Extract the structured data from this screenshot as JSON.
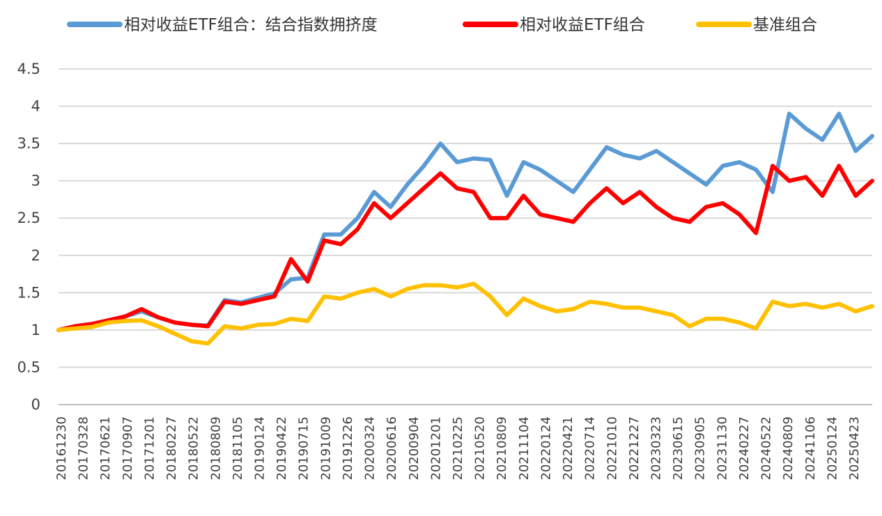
{
  "chart_data": {
    "type": "line",
    "title": "",
    "xlabel": "",
    "ylabel": "",
    "ylim": [
      0,
      4.5
    ],
    "yticks": [
      "0",
      "0.5",
      "1",
      "1.5",
      "2",
      "2.5",
      "3",
      "3.5",
      "4",
      "4.5"
    ],
    "grid": true,
    "legend_position": "top",
    "x_tick_labels": [
      "20161230",
      "20170328",
      "20170621",
      "20170907",
      "20171201",
      "20180227",
      "20180522",
      "20180809",
      "20181105",
      "20190124",
      "20190422",
      "20190715",
      "20191009",
      "20191226",
      "20200324",
      "20200616",
      "20200904",
      "20201201",
      "20210225",
      "20210520",
      "20210809",
      "20211104",
      "20220124",
      "20220421",
      "20220714",
      "20221010",
      "20221227",
      "20230323",
      "20230615",
      "20230905",
      "20231130",
      "20240227",
      "20240522",
      "20240809",
      "20241106",
      "20250124",
      "20250423"
    ],
    "series": [
      {
        "name": "相对收益ETF组合：结合指数拥挤度",
        "color": "#5b9bd5",
        "values": [
          1.0,
          1.05,
          1.08,
          1.13,
          1.18,
          1.25,
          1.17,
          1.1,
          1.07,
          1.06,
          1.4,
          1.37,
          1.43,
          1.49,
          1.68,
          1.7,
          2.28,
          2.28,
          2.5,
          2.85,
          2.65,
          2.95,
          3.2,
          3.5,
          3.25,
          3.3,
          3.28,
          2.8,
          3.25,
          3.15,
          3.0,
          2.85,
          3.15,
          3.45,
          3.35,
          3.3,
          3.4,
          3.25,
          3.1,
          2.95,
          3.2,
          3.25,
          3.15,
          2.85,
          3.9,
          3.7,
          3.55,
          3.9,
          3.4,
          3.6
        ]
      },
      {
        "name": "相对收益ETF组合",
        "color": "#ff0000",
        "values": [
          1.0,
          1.05,
          1.08,
          1.13,
          1.18,
          1.28,
          1.17,
          1.1,
          1.07,
          1.05,
          1.38,
          1.35,
          1.4,
          1.45,
          1.95,
          1.65,
          2.2,
          2.15,
          2.35,
          2.7,
          2.5,
          2.7,
          2.9,
          3.1,
          2.9,
          2.85,
          2.5,
          2.5,
          2.8,
          2.55,
          2.5,
          2.45,
          2.7,
          2.9,
          2.7,
          2.85,
          2.65,
          2.5,
          2.45,
          2.65,
          2.7,
          2.55,
          2.3,
          3.2,
          3.0,
          3.05,
          2.8,
          3.2,
          2.8,
          3.0
        ]
      },
      {
        "name": "基准组合",
        "color": "#ffc000",
        "values": [
          1.0,
          1.02,
          1.04,
          1.1,
          1.12,
          1.13,
          1.05,
          0.95,
          0.85,
          0.82,
          1.05,
          1.02,
          1.07,
          1.08,
          1.15,
          1.12,
          1.45,
          1.42,
          1.5,
          1.55,
          1.45,
          1.55,
          1.6,
          1.6,
          1.57,
          1.62,
          1.45,
          1.2,
          1.42,
          1.32,
          1.25,
          1.28,
          1.38,
          1.35,
          1.3,
          1.3,
          1.25,
          1.2,
          1.05,
          1.15,
          1.15,
          1.1,
          1.02,
          1.38,
          1.32,
          1.35,
          1.3,
          1.35,
          1.25,
          1.32
        ]
      }
    ]
  }
}
